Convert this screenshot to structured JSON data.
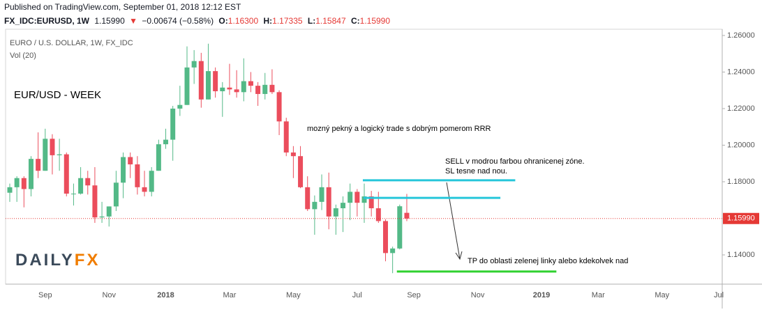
{
  "header": {
    "published": "Published on TradingView.com, September 01, 2018 12:12 EST",
    "symbol": "FX_IDC:EURUSD, 1W",
    "last": "1.15990",
    "arrow": "▼",
    "change": "−0.00674 (−0.58%)",
    "ohlc": [
      {
        "label": "O:",
        "value": "1.16300"
      },
      {
        "label": "H:",
        "value": "1.17335"
      },
      {
        "label": "L:",
        "value": "1.15847"
      },
      {
        "label": "C:",
        "value": "1.15990"
      }
    ]
  },
  "chart_data": {
    "type": "candlestick",
    "legend_title": "EURO / U.S. DOLLAR, 1W, FX_IDC",
    "legend_volume": "Vol (20)",
    "up_color": "#53b987",
    "down_color": "#eb4d5c",
    "categories": [
      null,
      null,
      null,
      null,
      null,
      "Sep",
      null,
      null,
      null,
      null,
      null,
      null,
      null,
      null,
      "Nov",
      null,
      null,
      null,
      null,
      null,
      null,
      null,
      "2018",
      null,
      null,
      null,
      null,
      null,
      null,
      null,
      null,
      "Mar",
      null,
      null,
      null,
      null,
      null,
      null,
      null,
      null,
      "May",
      null,
      null,
      null,
      null,
      null,
      null,
      null,
      null,
      "Jul",
      null,
      null,
      null,
      null,
      null,
      null,
      null,
      "Sep",
      null,
      null,
      null,
      null,
      null,
      null,
      null,
      null,
      "Nov",
      null,
      null,
      null,
      null,
      null,
      null,
      null,
      null,
      "2019",
      null,
      null,
      null,
      null,
      null,
      null,
      null,
      "Mar",
      null,
      null,
      null,
      null,
      null,
      null,
      null,
      null,
      "May",
      null,
      null,
      null,
      null,
      null,
      null,
      null,
      "Jul"
    ],
    "open": [
      1.174,
      1.177,
      1.182,
      1.176,
      1.1925,
      1.186,
      1.2035,
      1.1945,
      1.195,
      1.1735,
      1.1735,
      1.182,
      1.178,
      1.1605,
      1.161,
      1.1665,
      1.1795,
      1.1935,
      1.1895,
      1.177,
      1.1745,
      1.186,
      1.2005,
      1.203,
      1.22,
      1.222,
      1.2425,
      1.246,
      1.225,
      1.2405,
      1.2295,
      1.2315,
      1.2305,
      1.229,
      1.235,
      1.2325,
      1.228,
      1.233,
      1.229,
      1.213,
      1.196,
      1.194,
      1.177,
      1.165,
      1.169,
      1.177,
      1.161,
      1.1655,
      1.1685,
      1.1745,
      1.1685,
      1.172,
      1.1655,
      1.1585,
      1.141,
      1.1435,
      1.163,
      null,
      null,
      null,
      null,
      null,
      null,
      null,
      null,
      null,
      null,
      null,
      null,
      null,
      null,
      null,
      null,
      null,
      null,
      null,
      null,
      null,
      null,
      null,
      null,
      null,
      null,
      null,
      null,
      null,
      null,
      null,
      null,
      null,
      null,
      null,
      null,
      null,
      null,
      null,
      null,
      null,
      null,
      null,
      null
    ],
    "high": [
      1.179,
      1.183,
      1.183,
      1.194,
      1.207,
      1.209,
      1.206,
      1.2035,
      1.196,
      1.179,
      1.188,
      1.186,
      1.188,
      1.169,
      1.1665,
      1.186,
      1.196,
      1.196,
      1.194,
      1.186,
      1.188,
      1.203,
      1.209,
      1.2215,
      1.2325,
      1.254,
      1.252,
      1.2505,
      1.2555,
      1.2425,
      1.2345,
      1.2445,
      1.241,
      1.2475,
      1.24,
      1.2345,
      1.2395,
      1.2415,
      1.23,
      1.215,
      1.1995,
      1.1995,
      1.183,
      1.1725,
      1.184,
      1.185,
      1.1675,
      1.172,
      1.179,
      1.176,
      1.179,
      1.175,
      1.1745,
      1.1595,
      1.1445,
      1.1675,
      1.17335,
      null,
      null,
      null,
      null,
      null,
      null,
      null,
      null,
      null,
      null,
      null,
      null,
      null,
      null,
      null,
      null,
      null,
      null,
      null,
      null,
      null,
      null,
      null,
      null,
      null,
      null,
      null,
      null,
      null,
      null,
      null,
      null,
      null,
      null,
      null,
      null,
      null,
      null,
      null,
      null,
      null,
      null,
      null,
      null
    ],
    "low": [
      1.169,
      1.169,
      1.166,
      1.172,
      1.182,
      1.186,
      1.184,
      1.186,
      1.172,
      1.167,
      1.173,
      1.173,
      1.1575,
      1.1575,
      1.1555,
      1.164,
      1.171,
      1.182,
      1.173,
      1.172,
      1.172,
      1.186,
      1.198,
      1.1915,
      1.216,
      1.222,
      1.2335,
      1.2205,
      1.225,
      1.226,
      1.2155,
      1.2275,
      1.226,
      1.224,
      1.229,
      1.2215,
      1.225,
      1.228,
      1.2055,
      1.194,
      1.182,
      1.1765,
      1.164,
      1.151,
      1.1645,
      1.154,
      1.151,
      1.1525,
      1.159,
      1.161,
      1.1575,
      1.161,
      1.1575,
      1.1365,
      1.13,
      1.143,
      1.15847,
      null,
      null,
      null,
      null,
      null,
      null,
      null,
      null,
      null,
      null,
      null,
      null,
      null,
      null,
      null,
      null,
      null,
      null,
      null,
      null,
      null,
      null,
      null,
      null,
      null,
      null,
      null,
      null,
      null,
      null,
      null,
      null,
      null,
      null,
      null,
      null,
      null,
      null,
      null,
      null,
      null,
      null,
      null,
      null
    ],
    "close": [
      1.177,
      1.182,
      1.176,
      1.1925,
      1.186,
      1.2035,
      1.1945,
      1.195,
      1.1735,
      1.1735,
      1.182,
      1.178,
      1.1605,
      1.161,
      1.1665,
      1.1795,
      1.1935,
      1.1895,
      1.177,
      1.1745,
      1.186,
      1.2005,
      1.203,
      1.22,
      1.222,
      1.2425,
      1.246,
      1.225,
      1.2405,
      1.2295,
      1.2315,
      1.2305,
      1.229,
      1.235,
      1.2325,
      1.228,
      1.233,
      1.229,
      1.213,
      1.196,
      1.194,
      1.177,
      1.165,
      1.169,
      1.177,
      1.161,
      1.1655,
      1.1685,
      1.1745,
      1.1685,
      1.172,
      1.1655,
      1.1585,
      1.141,
      1.1435,
      1.1666,
      1.1599,
      null,
      null,
      null,
      null,
      null,
      null,
      null,
      null,
      null,
      null,
      null,
      null,
      null,
      null,
      null,
      null,
      null,
      null,
      null,
      null,
      null,
      null,
      null,
      null,
      null,
      null,
      null,
      null,
      null,
      null,
      null,
      null,
      null,
      null,
      null,
      null,
      null,
      null,
      null,
      null,
      null,
      null,
      null,
      null
    ],
    "ylim": [
      1.124,
      1.2634
    ],
    "yticks": [
      {
        "value": 1.14,
        "label": "1.14000"
      },
      {
        "value": 1.18,
        "label": "1.18000"
      },
      {
        "value": 1.2,
        "label": "1.20000"
      },
      {
        "value": 1.22,
        "label": "1.22000"
      },
      {
        "value": 1.24,
        "label": "1.24000"
      },
      {
        "value": 1.26,
        "label": "1.26000"
      }
    ],
    "last_price": {
      "value": 1.1599,
      "label": "1.15990",
      "color": "#e53935"
    },
    "lines": [
      {
        "value": 1.1808,
        "x": [
          49.8,
          71.3
        ],
        "color": "#26c6da"
      },
      {
        "value": 1.1712,
        "x": [
          49.9,
          69.2
        ],
        "color": "#26c6da"
      },
      {
        "value": 1.1309,
        "x": [
          54.6,
          77.1
        ],
        "color": "#2fd12f"
      }
    ],
    "annotations": {
      "title": "EUR/USD - WEEK",
      "note": "mozný pekný a logický trade s dobrým pomerom RRR",
      "sell": "SELL v modrou farbou ohranicenej zóne.",
      "sl": "SL tesne nad nou.",
      "tp": "TP do oblasti zelenej linky alebo kdekolvek nad"
    },
    "logo": {
      "part1": "DAILY",
      "part2": "FX"
    }
  }
}
